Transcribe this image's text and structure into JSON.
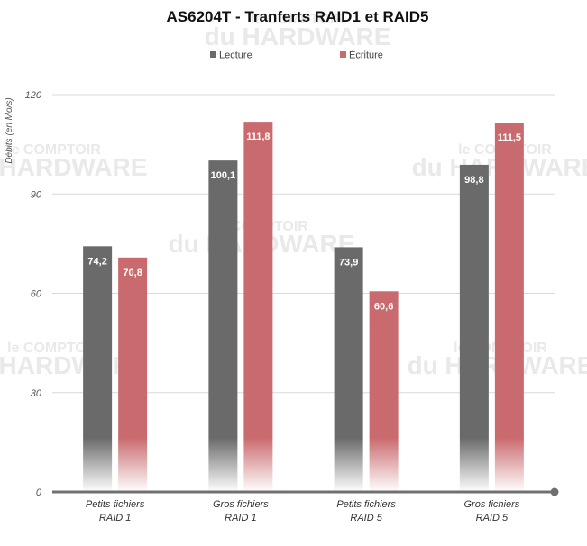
{
  "chart_data": {
    "type": "bar",
    "title": "AS6204T - Tranferts RAID1 et RAID5",
    "ylabel": "Débits (en Mo/s)",
    "xlabel": "",
    "ylim": [
      0,
      120
    ],
    "yticks": [
      0,
      30,
      60,
      90,
      120
    ],
    "ytick_labels": [
      "0",
      "30",
      "60",
      "90",
      "120"
    ],
    "grid": true,
    "legend_position": "top-center",
    "categories": [
      [
        "Petits fichiers",
        "RAID 1"
      ],
      [
        "Gros fichiers",
        "RAID 1"
      ],
      [
        "Petits fichiers",
        "RAID 5"
      ],
      [
        "Gros fichiers",
        "RAID 5"
      ]
    ],
    "series": [
      {
        "name": "Lecture",
        "color": "#6a6a6a",
        "values": [
          74.2,
          100.1,
          73.9,
          98.8
        ],
        "labels": [
          "74,2",
          "100,1",
          "73,9",
          "98,8"
        ]
      },
      {
        "name": "Écriture",
        "color": "#c96b6e",
        "values": [
          70.8,
          111.8,
          60.6,
          111.5
        ],
        "labels": [
          "70,8",
          "111,8",
          "60,6",
          "111,5"
        ]
      }
    ]
  },
  "watermark": {
    "line1": "le COMPTOIR",
    "line2": "du HARDWARE"
  },
  "colors": {
    "axis": "#707070",
    "grid": "#d9d9d9"
  }
}
